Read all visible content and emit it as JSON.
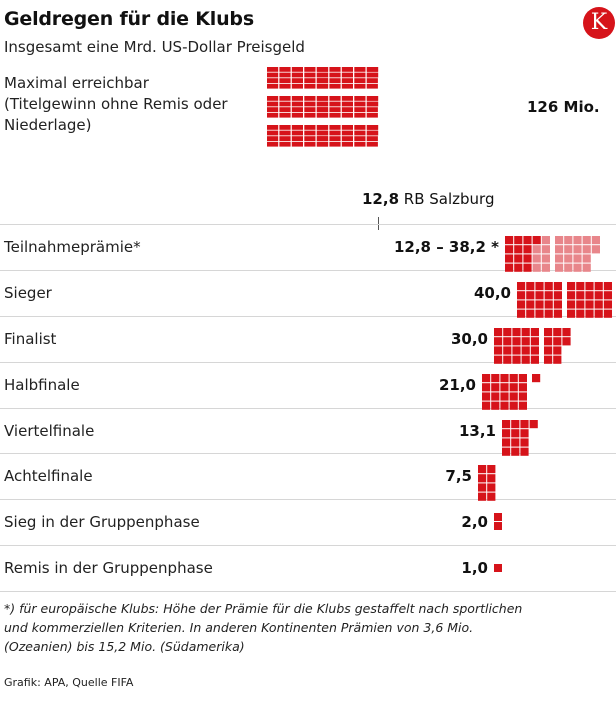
{
  "header": {
    "title": "Geldregen für die Klubs",
    "subtitle": "Insgesamt eine Mrd. US-Dollar Preisgeld",
    "logo_letter": "K"
  },
  "colors": {
    "accent": "#d6131a",
    "light": "#e8868b",
    "divider": "#d6d6d6"
  },
  "maximum": {
    "label": "Maximal erreichbar (Titelgewinn ohne Remis oder Niederlage)",
    "value": 126,
    "value_label": "126 Mio."
  },
  "reference": {
    "value_label": "12,8",
    "name": "RB Salzburg"
  },
  "chart_data": {
    "type": "bar",
    "unit": "Mio. US-Dollar",
    "categories": [
      "Teilnahmeprämie*",
      "Sieger",
      "Finalist",
      "Halbfinale",
      "Viertelfinale",
      "Achtelfinale",
      "Sieg in der Gruppenphase",
      "Remis in der Gruppenphase"
    ],
    "values": [
      38.2,
      40.0,
      30.0,
      21.0,
      13.1,
      7.5,
      2.0,
      1.0
    ],
    "range_min": [
      12.8,
      null,
      null,
      null,
      null,
      null,
      null,
      null
    ],
    "value_labels": [
      "12,8 – 38,2 *",
      "40,0",
      "30,0",
      "21,0",
      "13,1",
      "7,5",
      "2,0",
      "1,0"
    ]
  },
  "footnote": "*) für europäische Klubs: Höhe der Prämie für die Klubs gestaffelt nach sportlichen und kommerziellen Kriterien. In anderen Kontinenten Prämien von 3,6 Mio. (Ozeanien) bis 15,2 Mio. (Südamerika)",
  "source": "Grafik: APA, Quelle FIFA"
}
